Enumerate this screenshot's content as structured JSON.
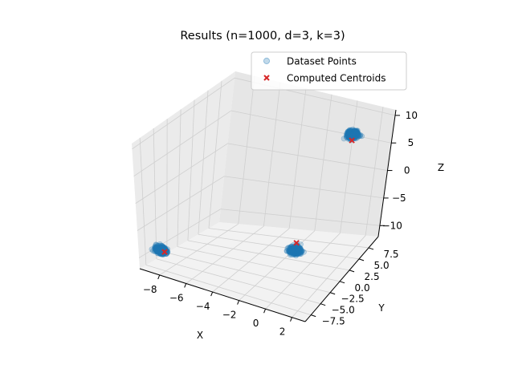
{
  "chart_data": {
    "type": "scatter",
    "projection": "3d",
    "title": "Results (n=1000, d=3, k=3)",
    "xlabel": "X",
    "ylabel": "Y",
    "zlabel": "Z",
    "xlim": [
      -9.5,
      3
    ],
    "ylim": [
      -9,
      10
    ],
    "zlim": [
      -12,
      11
    ],
    "xticks": [
      "−8",
      "−6",
      "−4",
      "−2",
      "0",
      "2"
    ],
    "xtick_values": [
      -8,
      -6,
      -4,
      -2,
      0,
      2
    ],
    "yticks": [
      "−7.5",
      "−5.0",
      "−2.5",
      "0.0",
      "2.5",
      "5.0",
      "7.5"
    ],
    "ytick_values": [
      -7.5,
      -5,
      -2.5,
      0,
      2.5,
      5,
      7.5
    ],
    "zticks": [
      "−10",
      "−5",
      "0",
      "5",
      "10"
    ],
    "ztick_values": [
      -10,
      -5,
      0,
      5,
      10
    ],
    "grid": true,
    "legend_position": "top-right",
    "series": [
      {
        "name": "Dataset Points",
        "marker": "circle",
        "color": "#1f77b4",
        "alpha": 0.25,
        "clusters": [
          {
            "center": [
              -8.3,
              -7.5,
              -8.4
            ],
            "spread": [
              0.35,
              0.5,
              0.45
            ],
            "count": 333
          },
          {
            "center": [
              1.2,
              6.1,
              8.7
            ],
            "spread": [
              0.35,
              0.5,
              0.45
            ],
            "count": 334
          },
          {
            "center": [
              -0.9,
              1.3,
              -9.3
            ],
            "spread": [
              0.35,
              0.5,
              0.45
            ],
            "count": 333
          }
        ]
      },
      {
        "name": "Computed Centroids",
        "marker": "x",
        "color": "#d62728",
        "points": [
          {
            "x": -8.0,
            "y": -7.6,
            "z": -8.5
          },
          {
            "x": 1.2,
            "y": 6.0,
            "z": 7.7
          },
          {
            "x": -1.0,
            "y": 1.8,
            "z": -8.4
          }
        ]
      }
    ]
  }
}
